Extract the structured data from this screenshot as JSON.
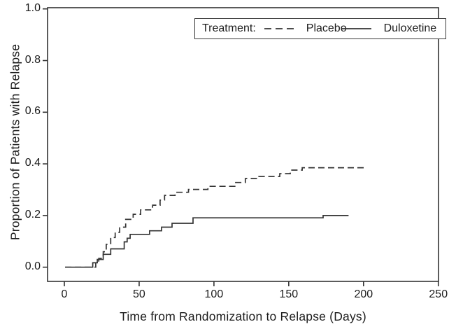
{
  "figure": {
    "background_color": "#ffffff",
    "ink_color": "#333333",
    "text_color": "#1c1c1c"
  },
  "chart_data": {
    "type": "line",
    "subtype": "kaplan-meier-step-curve",
    "title": "",
    "xlabel": "Time from Randomization to Relapse (Days)",
    "ylabel": "Proportion of Patients with Relapse",
    "xlim": [
      0,
      250
    ],
    "ylim": [
      0.0,
      1.0
    ],
    "x_ticks": [
      0,
      50,
      100,
      150,
      200,
      250
    ],
    "y_ticks": [
      "0.0",
      "0.2",
      "0.4",
      "0.6",
      "0.8",
      "1.0"
    ],
    "grid": false,
    "frame": "full-box",
    "legend": {
      "position": "top-right-inside",
      "title": "Treatment:",
      "entries": [
        {
          "label": "Placebo",
          "line_style": "dashed"
        },
        {
          "label": "Duloxetine",
          "line_style": "solid"
        }
      ]
    },
    "series": [
      {
        "name": "Placebo",
        "line_style": "dashed",
        "end_x": 202,
        "points": [
          [
            0.5,
            0.0
          ],
          [
            21,
            0.017
          ],
          [
            23,
            0.034
          ],
          [
            26,
            0.06
          ],
          [
            28,
            0.088
          ],
          [
            31,
            0.115
          ],
          [
            34,
            0.135
          ],
          [
            37,
            0.155
          ],
          [
            41,
            0.185
          ],
          [
            46,
            0.205
          ],
          [
            51,
            0.222
          ],
          [
            59,
            0.24
          ],
          [
            64,
            0.26
          ],
          [
            67,
            0.278
          ],
          [
            74,
            0.29
          ],
          [
            83,
            0.301
          ],
          [
            96,
            0.313
          ],
          [
            114,
            0.328
          ],
          [
            121,
            0.343
          ],
          [
            130,
            0.351
          ],
          [
            144,
            0.362
          ],
          [
            151,
            0.376
          ],
          [
            159,
            0.385
          ]
        ]
      },
      {
        "name": "Duloxetine",
        "line_style": "solid",
        "end_x": 190,
        "points": [
          [
            0.5,
            0.0
          ],
          [
            19,
            0.017
          ],
          [
            22,
            0.03
          ],
          [
            26,
            0.05
          ],
          [
            31,
            0.071
          ],
          [
            40,
            0.098
          ],
          [
            42,
            0.112
          ],
          [
            44,
            0.127
          ],
          [
            57,
            0.141
          ],
          [
            65,
            0.155
          ],
          [
            72,
            0.17
          ],
          [
            86,
            0.191
          ],
          [
            173,
            0.2
          ]
        ]
      }
    ]
  }
}
